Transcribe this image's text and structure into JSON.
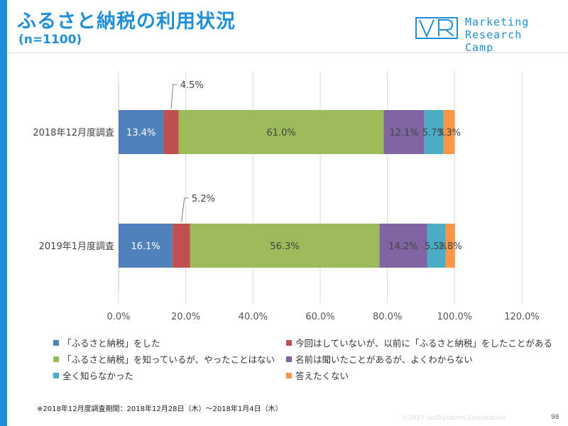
{
  "header": {
    "title": "ふるさと納税の利用状況",
    "subtitle": "(n=1100)",
    "logo_line1": "Marketing",
    "logo_line2": "Research Camp",
    "accent": "#1e8fd8"
  },
  "chart_data": {
    "type": "bar",
    "orientation": "horizontal",
    "stacked": true,
    "categories": [
      "2018年12月度調査",
      "2019年1月度調査"
    ],
    "series": [
      {
        "name": "「ふるさと納税」をした",
        "color": "#4f81bd",
        "values": [
          13.4,
          16.1
        ],
        "labels": [
          "13.4%",
          "16.1%"
        ]
      },
      {
        "name": "今回はしていないが、以前に「ふるさと納税」をしたことがある",
        "color": "#c0504d",
        "values": [
          4.5,
          5.2
        ],
        "labels": [
          "4.5%",
          "5.2%"
        ]
      },
      {
        "name": "「ふるさと納税」を知っているが、やったことはない",
        "color": "#9bbb59",
        "values": [
          61.0,
          56.3
        ],
        "labels": [
          "61.0%",
          "56.3%"
        ]
      },
      {
        "name": "名前は聞いたことがあるが、よくわからない",
        "color": "#8064a2",
        "values": [
          12.1,
          14.2
        ],
        "labels": [
          "12.1%",
          "14.2%"
        ]
      },
      {
        "name": "全く知らなかった",
        "color": "#4bacc6",
        "values": [
          5.7,
          5.5
        ],
        "labels": [
          "5.7%",
          "5.5%"
        ]
      },
      {
        "name": "答えたくない",
        "color": "#f79646",
        "values": [
          3.3,
          2.8
        ],
        "labels": [
          "3.3%",
          "2.8%"
        ]
      }
    ],
    "xlim": [
      0,
      120
    ],
    "xticks": [
      0,
      20,
      40,
      60,
      80,
      100,
      120
    ],
    "xtick_labels": [
      "0.0%",
      "20.0%",
      "40.0%",
      "60.0%",
      "80.0%",
      "100.0%",
      "120.0%"
    ],
    "grid": true,
    "legend_position": "bottom"
  },
  "footer": {
    "footnote": "※2018年12月度調査期間：2018年12月28日（木）～2018年1月4日（木）",
    "copyright": "©2017 JustSystems Corporation",
    "page": "98"
  }
}
